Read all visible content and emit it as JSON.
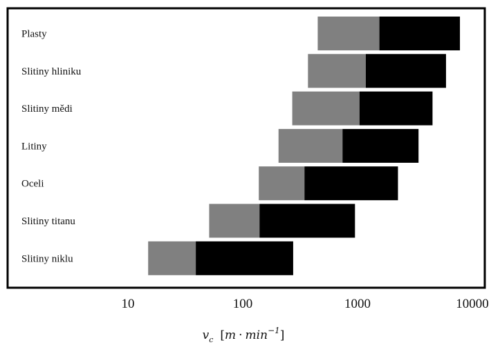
{
  "chart_data": {
    "type": "bar",
    "orientation": "horizontal",
    "stacked": true,
    "scale": "log",
    "xlim": [
      5,
      10000
    ],
    "categories": [
      "Plasty",
      "Slitiny hliniku",
      "Slitiny mědi",
      "Litiny",
      "Oceli",
      "Slitiny titanu",
      "Slitiny niklu"
    ],
    "ranges": [
      {
        "low": 450,
        "mid": 1550,
        "high": 7800
      },
      {
        "low": 370,
        "mid": 1180,
        "high": 5900
      },
      {
        "low": 270,
        "mid": 1040,
        "high": 4500
      },
      {
        "low": 205,
        "mid": 740,
        "high": 3400
      },
      {
        "low": 138,
        "mid": 345,
        "high": 2250
      },
      {
        "low": 51,
        "mid": 140,
        "high": 950
      },
      {
        "low": 15,
        "mid": 39,
        "high": 275
      }
    ],
    "series_colors": {
      "lower": "#808080",
      "upper": "#000000"
    },
    "xticks": [
      10,
      100,
      1000,
      10000
    ],
    "xtick_labels": [
      "10",
      "100",
      "1000",
      "10000"
    ],
    "xlabel": {
      "symbol": "v",
      "subscript": "c",
      "unit_open": "[",
      "unit_m": "m",
      "unit_dot": "·",
      "unit_min": "min",
      "unit_exp": "−1",
      "unit_close": "]"
    },
    "grid": false,
    "legend": "none"
  }
}
